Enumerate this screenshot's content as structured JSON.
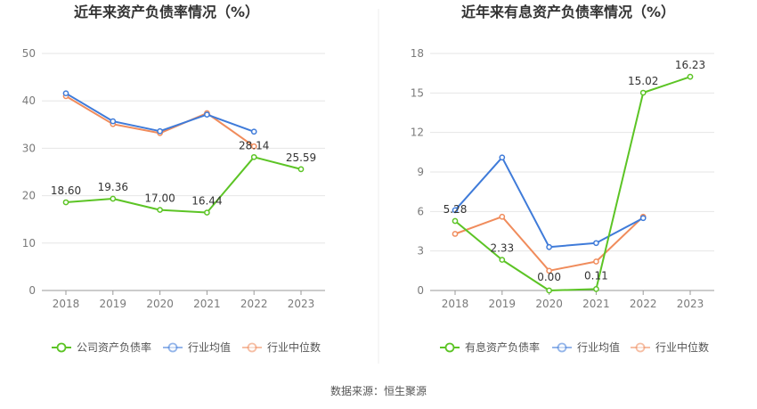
{
  "source_label": "数据来源：恒生聚源",
  "colors": {
    "company": "#5cc425",
    "industry_avg": "#3f7bd9",
    "industry_median": "#f08c5c",
    "grid": "#e6e6e6",
    "axis": "#999999"
  },
  "chart_data": [
    {
      "type": "line",
      "title": "近年来资产负债率情况（%）",
      "categories": [
        "2018",
        "2019",
        "2020",
        "2021",
        "2022",
        "2023"
      ],
      "ylim": [
        0,
        50
      ],
      "yticks": [
        0,
        10,
        20,
        30,
        40,
        50
      ],
      "grid": true,
      "legend_position": "bottom",
      "series": [
        {
          "name": "公司资产负债率",
          "role": "company",
          "values": [
            18.6,
            19.36,
            17.0,
            16.44,
            28.14,
            25.59
          ],
          "labels": [
            "18.60",
            "19.36",
            "17.00",
            "16.44",
            "28.14",
            "25.59"
          ]
        },
        {
          "name": "行业均值",
          "role": "industry_avg",
          "values": [
            41.6,
            35.7,
            33.6,
            37.1,
            33.5,
            null
          ]
        },
        {
          "name": "行业中位数",
          "role": "industry_median",
          "values": [
            41.0,
            35.1,
            33.2,
            37.4,
            30.4,
            null
          ]
        }
      ]
    },
    {
      "type": "line",
      "title": "近年来有息资产负债率情况（%）",
      "categories": [
        "2018",
        "2019",
        "2020",
        "2021",
        "2022",
        "2023"
      ],
      "ylim": [
        0,
        18
      ],
      "yticks": [
        0,
        3,
        6,
        9,
        12,
        15,
        18
      ],
      "grid": true,
      "legend_position": "bottom",
      "series": [
        {
          "name": "有息资产负债率",
          "role": "company",
          "values": [
            5.28,
            2.33,
            0.0,
            0.11,
            15.02,
            16.23
          ],
          "labels": [
            "5.28",
            "2.33",
            "0.00",
            "0.11",
            "15.02",
            "16.23"
          ]
        },
        {
          "name": "行业均值",
          "role": "industry_avg",
          "values": [
            6.1,
            10.1,
            3.3,
            3.6,
            5.5,
            null
          ]
        },
        {
          "name": "行业中位数",
          "role": "industry_median",
          "values": [
            4.3,
            5.6,
            1.5,
            2.2,
            5.6,
            null
          ]
        }
      ]
    }
  ]
}
